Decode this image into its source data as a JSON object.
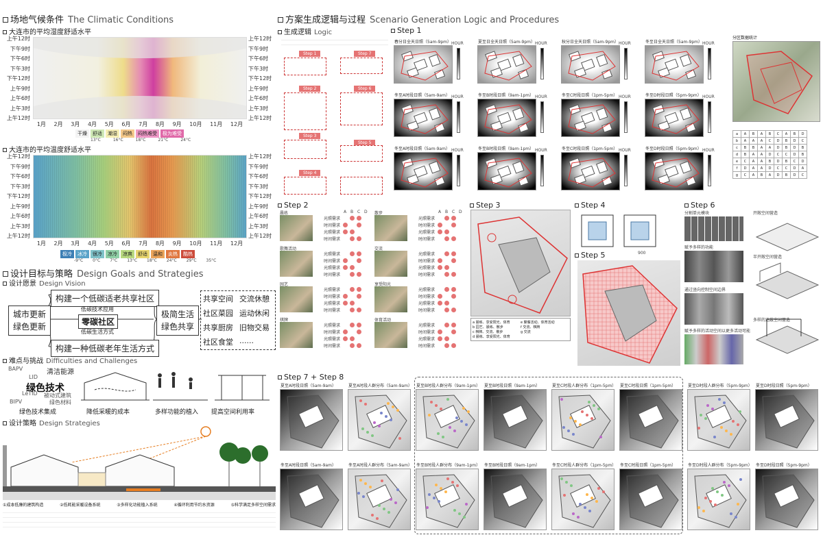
{
  "left": {
    "climate_title": "场地气候条件",
    "climate_title_en": "The Climatic Conditions",
    "humidity_title": "大连市的平均湿度舒适水平",
    "temp_title": "大连市的平均温度舒适水平",
    "hours": [
      "上午12时",
      "下午9时",
      "下午6时",
      "下午3时",
      "下午12时",
      "上午9时",
      "上午6时",
      "上午3时",
      "上午12时"
    ],
    "hours_right": [
      "上午12时",
      "下午9时",
      "下午6时",
      "下午3时",
      "下午12时",
      "上午9时",
      "上午6时",
      "上午3时",
      "上午12时"
    ],
    "months": [
      "1月",
      "2月",
      "3月",
      "4月",
      "5月",
      "6月",
      "7月",
      "8月",
      "9月",
      "10月",
      "11月",
      "12月"
    ],
    "humidity_legend": [
      "干燥",
      "舒适",
      "潮湿",
      "闷热",
      "闷热难受",
      "极为难受"
    ],
    "humidity_legend_temps": [
      "13°C",
      "16°C",
      "18°C",
      "21°C",
      "24°C"
    ],
    "temp_legend": [
      "极冷",
      "冰冷",
      "很冷",
      "凉冷",
      "凉爽",
      "舒适",
      "温和",
      "炎热",
      "酷热"
    ],
    "temp_legend_temps": [
      "-9°C",
      "0°C",
      "7°C",
      "13°C",
      "18°C",
      "24°C",
      "29°C",
      "35°C"
    ],
    "goals_title": "设计目标与策略",
    "goals_title_en": "Design Goals and Strategies",
    "vision_title": "设计愿景",
    "vision_title_en": "Design Vision",
    "vision": {
      "top": "构建一个低碳适老共享社区",
      "bottom": "构建一种低碳老年生活方式",
      "center": "零碳社区",
      "c1": "低碳技术应用",
      "c2": "低碳生活方式",
      "left1": "城市更新",
      "left2": "绿色更新",
      "mid1": "极简生活",
      "mid2": "绿色共享",
      "right": [
        "共享空间",
        "交流休憩",
        "社区菜园",
        "运动休闲",
        "共享厨房",
        "旧物交易",
        "社区食堂",
        "......"
      ]
    },
    "difficulty_title": "难点与挑战",
    "difficulty_title_en": "Difficulties and Challenges",
    "difficulty_items": [
      "绿色技术集成",
      "降低采暖的成本",
      "多样功能的植入",
      "提高空间利用率"
    ],
    "tech_words": [
      "BAPV",
      "LID",
      "LeTID",
      "BIPV",
      "清洁能源",
      "绿色技术",
      "被动式建筑",
      "绿色材料"
    ],
    "strategy_title": "设计策略",
    "strategy_title_en": "Design Strategies",
    "strategy_cols": [
      "①成本低廉的建筑构造",
      "②低耗能采暖设备系统",
      "③多样化功能植入系统",
      "④循环利用节约水资源",
      "⑤科学满足多样空间需求"
    ]
  },
  "right": {
    "logic_title": "方案生成逻辑与过程",
    "logic_title_en": "Scenario Generation Logic and Procedures",
    "gen_title": "生成逻辑",
    "gen_title_en": "Logic",
    "steps": [
      "Step 1",
      "Step 2",
      "Step 3",
      "Step 4",
      "Step 5",
      "Step 6",
      "Step 7 + Step 8"
    ],
    "flow_tags": [
      "Step 1",
      "Step 2",
      "Step 3",
      "Step 4",
      "Step 5",
      "Step 6",
      "Step 7"
    ],
    "step1_caps": [
      "春分日全天日照（5am-9pm）",
      "夏至日全天日照（5am-9pm）",
      "秋分日全天日照（5am-9pm）",
      "冬至日全天日照（5am-9pm）",
      "冬至A时段日照（5am-9am）",
      "冬至B时段日照（9am-1pm）",
      "冬至C时段日照（1pm-5pm）",
      "冬至D时段日照（5pm-9pm）",
      "冬至A时段日照（5am-9am）",
      "冬至B时段日照（9am-1pm）",
      "冬至C时段日照（1pm-5pm）",
      "冬至D时段日照（5pm-9pm）"
    ],
    "step1_site": "分区数据统计",
    "cbar_label": "HOUR",
    "step2_activities": [
      "晨练",
      "散步",
      "歌舞活动",
      "交流",
      "园艺",
      "享受阳光",
      "棋牌",
      "体育活动"
    ],
    "step2_reqs": [
      "光照需求",
      "时间需求",
      "光照需求",
      "时间需求"
    ],
    "step2_cols": [
      "A",
      "B",
      "C",
      "D"
    ],
    "step6_labels": [
      "分割单元模块",
      "开敞空间营造",
      "赋予多样的功能",
      "半开敞空间营造",
      "通过竖向控制空间边界",
      "多样的遮蔽空间营造",
      "赋予多样的活动空间以更多活动可能"
    ],
    "step3_legend": [
      "a 晨练、享受阳光、体育",
      "e 聚餐活动、体育活动",
      "b 园艺、晨练、散步",
      "f 交流、棋牌",
      "c 棋牌、交流、散步",
      "g 交流",
      "d 晨练、享受阳光、体育"
    ],
    "step4_dim": "900",
    "step78_caps": [
      "夏至A时段日照（5am-9am）",
      "夏至A时段人群分布（5am-9am）",
      "夏至B时段人群分布（9am-1pm）",
      "夏至B时段日照（9am-1pm）",
      "夏至C时段人群分布（1pm-5pm）",
      "夏至C时段日照（1pm-5pm）",
      "夏至D时段人群分布（5pm-9pm）",
      "夏至D时段日照（5pm-9pm）",
      "冬至A时段日照（5am-9am）",
      "冬至A时段人群分布（5am-9am）",
      "冬至B时段人群分布（9am-1pm）",
      "冬至B时段日照（9am-1pm）",
      "冬至C时段人群分布（1pm-5pm）",
      "冬至C时段日照（1pm-5pm）",
      "冬至D时段人群分布（5pm-9pm）",
      "冬至D时段日照（5pm-9pm）"
    ]
  }
}
